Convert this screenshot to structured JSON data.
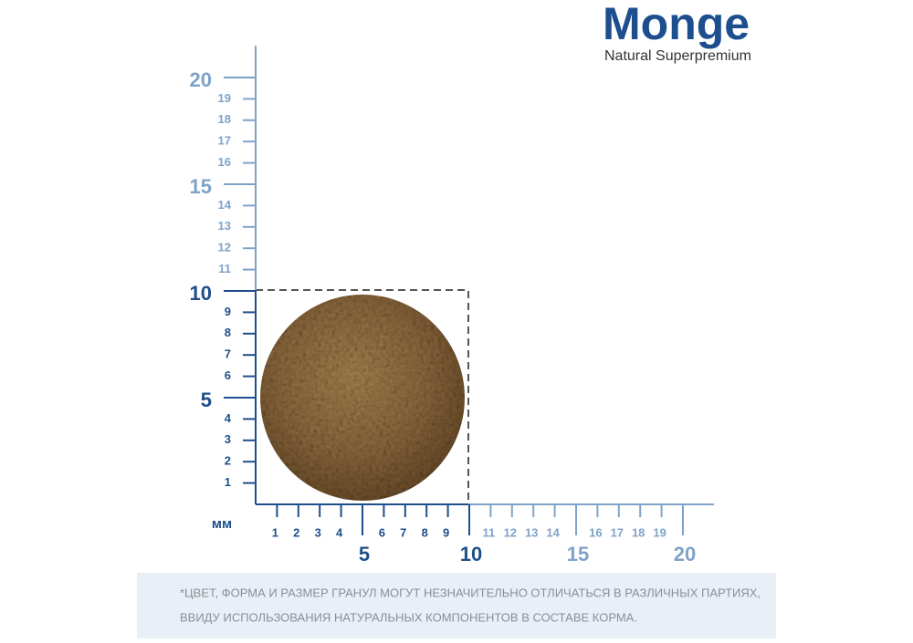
{
  "brand": {
    "name": "Monge",
    "tagline": "Natural Superpremium"
  },
  "ruler": {
    "unit": "мм",
    "minor": [
      1,
      2,
      3,
      4,
      6,
      7,
      8,
      9,
      11,
      12,
      13,
      14,
      16,
      17,
      18,
      19
    ],
    "major": [
      5,
      10,
      15,
      20
    ]
  },
  "note": {
    "lines": [
      "*ЦВЕТ, ФОРМА И РАЗМЕР ГРАНУЛ МОГУТ НЕЗНАЧИТЕЛЬНО ОТЛИЧАТЬСЯ В РАЗЛИЧНЫХ ПАРТИЯХ,",
      "ВВИДУ ИСПОЛЬЗОВАНИЯ НАТУРАЛЬНЫХ КОМПОНЕНТОВ В СОСТАВЕ КОРМА."
    ]
  }
}
